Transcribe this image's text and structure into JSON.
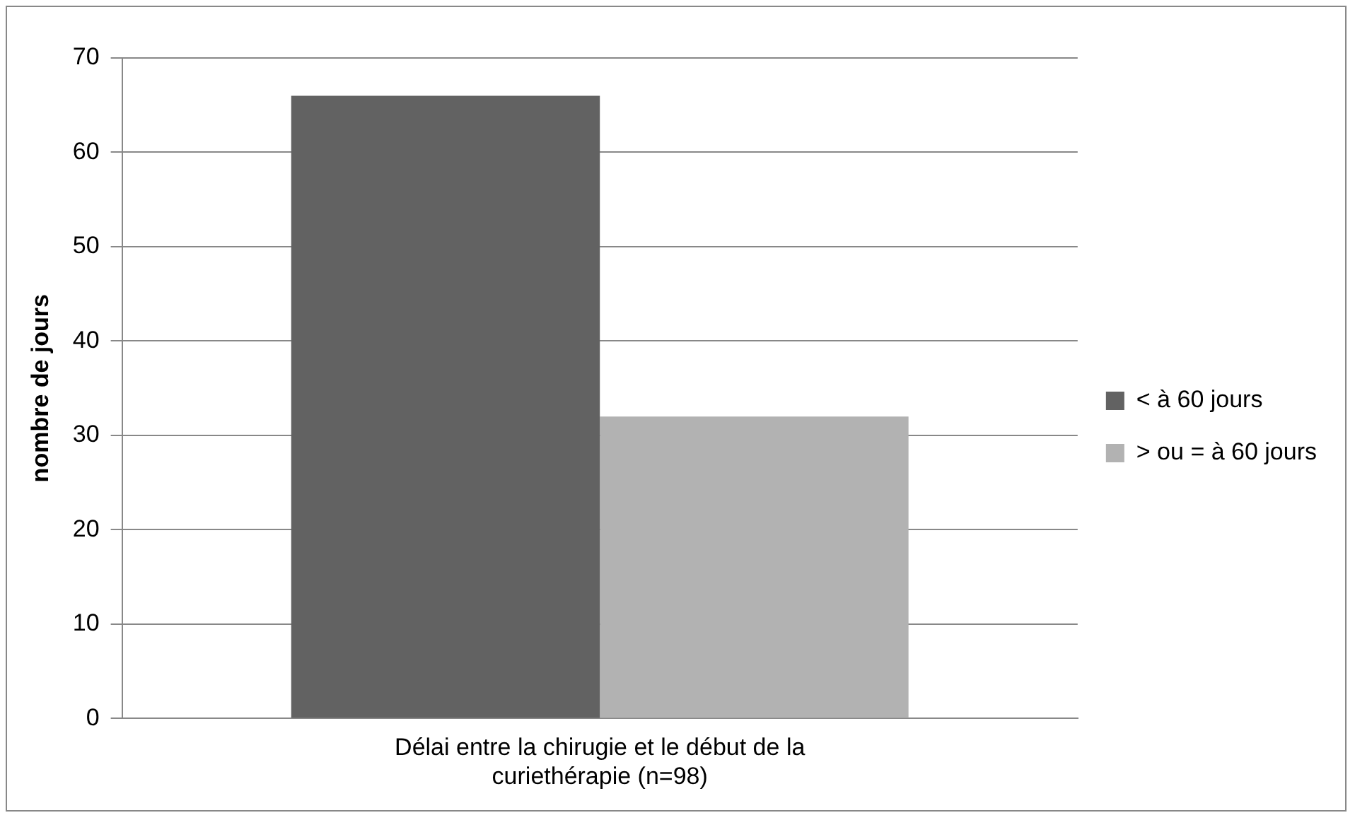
{
  "chart_data": {
    "type": "bar",
    "ylabel": "nombre de jours",
    "categories": [
      "Délai entre la chirugie et le début de la curiethérapie (n=98)"
    ],
    "series": [
      {
        "name": "< à 60 jours",
        "color": "#626262",
        "values": [
          66
        ]
      },
      {
        "name": "> ou = à 60 jours",
        "color": "#b2b2b2",
        "values": [
          32
        ]
      }
    ],
    "ylim": [
      0,
      70
    ],
    "yticks": [
      0,
      10,
      20,
      30,
      40,
      50,
      60,
      70
    ],
    "grid": "y",
    "legend": "right"
  }
}
